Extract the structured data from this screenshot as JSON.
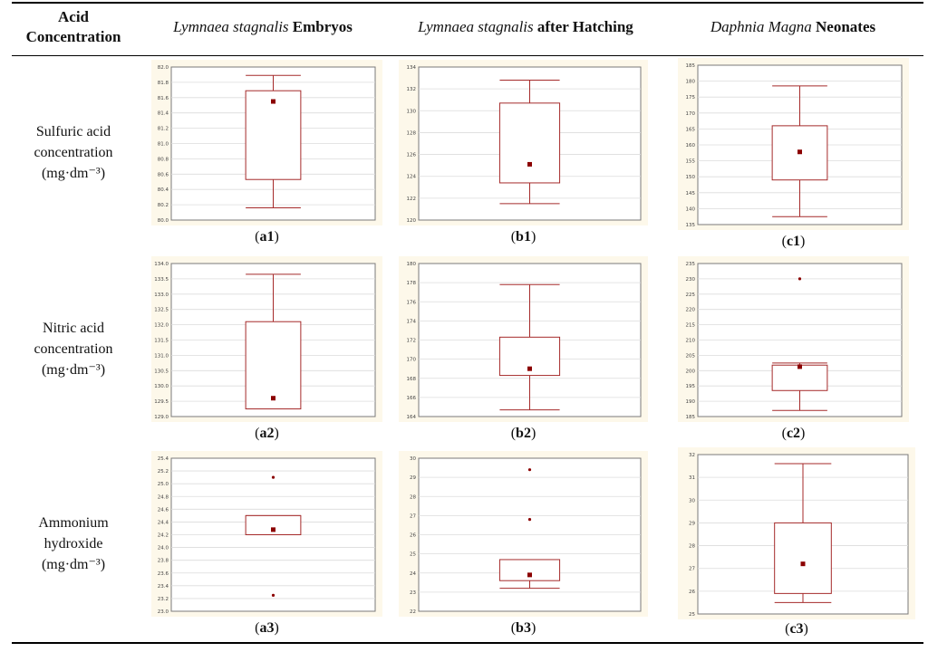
{
  "header": {
    "col0": "Acid Concentration",
    "col1_species": "Lymnaea stagnalis",
    "col1_suffix": " Embryos",
    "col2_species": "Lymnaea stagnalis",
    "col2_suffix": " after Hatching",
    "col3_species": "Daphnia Magna",
    "col3_suffix": " Neonates"
  },
  "rows": [
    {
      "line1": "Sulfuric acid",
      "line2": "concentration",
      "unit": "(mg·dm⁻³)"
    },
    {
      "line1": "Nitric acid",
      "line2": "concentration",
      "unit": "(mg·dm⁻³)"
    },
    {
      "line1": "Ammonium",
      "line2": "hydroxide",
      "unit": "(mg·dm⁻³)"
    }
  ],
  "colors": {
    "box": "#a52a2a",
    "median": "#8b0000",
    "grid": "#dcdcdc",
    "panel_bg": "#fdf8ea"
  },
  "chart_data": [
    {
      "id": "a1",
      "caption_letter": "a",
      "caption_num": "1",
      "type": "box",
      "ylim": [
        80.0,
        82.0
      ],
      "yticks": [
        "80.0",
        "80.2",
        "80.4",
        "80.6",
        "80.8",
        "81.0",
        "81.2",
        "81.4",
        "81.6",
        "81.8",
        "82.0"
      ],
      "whisker_low": 80.16,
      "q1": 80.53,
      "median": 81.55,
      "q3": 81.69,
      "whisker_high": 81.89,
      "outliers": []
    },
    {
      "id": "b1",
      "caption_letter": "b",
      "caption_num": "1",
      "type": "box",
      "ylim": [
        120,
        134
      ],
      "yticks": [
        "120",
        "122",
        "124",
        "126",
        "128",
        "130",
        "132",
        "134"
      ],
      "whisker_low": 121.5,
      "q1": 123.4,
      "median": 125.1,
      "q3": 130.7,
      "whisker_high": 132.8,
      "outliers": []
    },
    {
      "id": "c1",
      "caption_letter": "c",
      "caption_num": "1",
      "type": "box",
      "ylim": [
        135,
        185
      ],
      "yticks": [
        "135",
        "140",
        "145",
        "150",
        "155",
        "160",
        "165",
        "170",
        "175",
        "180",
        "185"
      ],
      "whisker_low": 137.5,
      "q1": 149.0,
      "median": 157.8,
      "q3": 166.0,
      "whisker_high": 178.5,
      "outliers": []
    },
    {
      "id": "a2",
      "caption_letter": "a",
      "caption_num": "2",
      "type": "box",
      "ylim": [
        129.0,
        134.0
      ],
      "yticks": [
        "129.0",
        "129.5",
        "130.0",
        "130.5",
        "131.0",
        "131.5",
        "132.0",
        "132.5",
        "133.0",
        "133.5",
        "134.0"
      ],
      "whisker_low": 129.25,
      "q1": 129.25,
      "median": 129.6,
      "q3": 132.1,
      "whisker_high": 133.65,
      "outliers": []
    },
    {
      "id": "b2",
      "caption_letter": "b",
      "caption_num": "2",
      "type": "box",
      "ylim": [
        164,
        180
      ],
      "yticks": [
        "164",
        "166",
        "168",
        "170",
        "172",
        "174",
        "176",
        "178",
        "180"
      ],
      "whisker_low": 164.7,
      "q1": 168.3,
      "median": 169.0,
      "q3": 172.3,
      "whisker_high": 177.8,
      "outliers": []
    },
    {
      "id": "c2",
      "caption_letter": "c",
      "caption_num": "2",
      "type": "box",
      "ylim": [
        185,
        235
      ],
      "yticks": [
        "185",
        "190",
        "195",
        "200",
        "205",
        "210",
        "215",
        "220",
        "225",
        "230",
        "235"
      ],
      "whisker_low": 187.0,
      "q1": 193.5,
      "median": 201.3,
      "q3": 201.8,
      "whisker_high": 202.5,
      "outliers": [
        230.0
      ]
    },
    {
      "id": "a3",
      "caption_letter": "a",
      "caption_num": "3",
      "type": "box",
      "ylim": [
        23.0,
        25.4
      ],
      "yticks": [
        "23.0",
        "23.2",
        "23.4",
        "23.6",
        "23.8",
        "24.0",
        "24.2",
        "24.4",
        "24.6",
        "24.8",
        "25.0",
        "25.2",
        "25.4"
      ],
      "whisker_low": 24.2,
      "q1": 24.2,
      "median": 24.28,
      "q3": 24.5,
      "whisker_high": 24.5,
      "outliers": [
        25.1,
        23.25
      ]
    },
    {
      "id": "b3",
      "caption_letter": "b",
      "caption_num": "3",
      "type": "box",
      "ylim": [
        22,
        30
      ],
      "yticks": [
        "22",
        "23",
        "24",
        "25",
        "26",
        "27",
        "28",
        "29",
        "30"
      ],
      "whisker_low": 23.2,
      "q1": 23.6,
      "median": 23.9,
      "q3": 24.7,
      "whisker_high": 24.7,
      "outliers": [
        26.8,
        29.4
      ]
    },
    {
      "id": "c3",
      "caption_letter": "c",
      "caption_num": "3",
      "type": "box",
      "ylim": [
        25,
        32
      ],
      "yticks": [
        "25",
        "26",
        "27",
        "28",
        "29",
        "30",
        "31",
        "32"
      ],
      "whisker_low": 25.5,
      "q1": 25.9,
      "median": 27.2,
      "q3": 29.0,
      "whisker_high": 31.6,
      "outliers": []
    }
  ]
}
